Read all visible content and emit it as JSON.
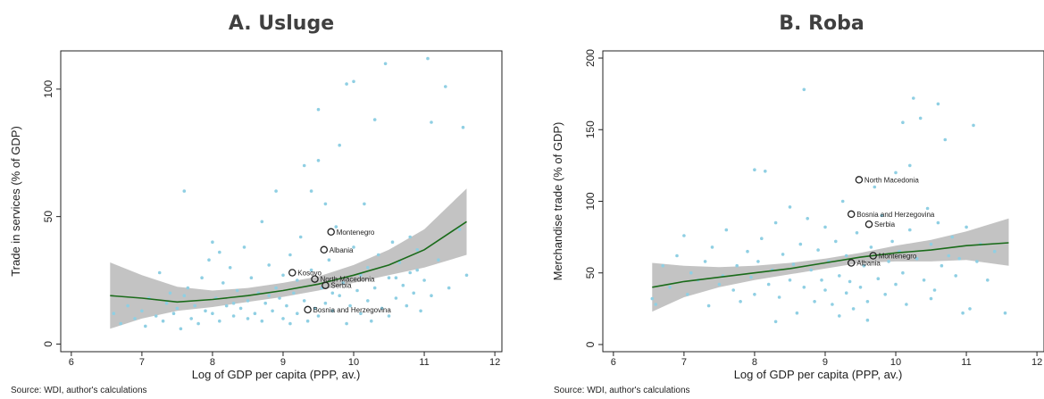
{
  "overline_text": "",
  "panels": {
    "a": {
      "title": "A. Usluge",
      "source": "Source: WDI, author's calculations"
    },
    "b": {
      "title": "B. Roba",
      "source": "Source: WDI, author's calculations"
    }
  },
  "chart_data": [
    {
      "type": "scatter",
      "title": "A. Usluge",
      "xlabel": "Log of GDP per capita (PPP, av.)",
      "ylabel": "Trade in services (% of GDP)",
      "xlim": [
        5.85,
        12.1
      ],
      "ylim": [
        -3,
        115
      ],
      "xticks": [
        6,
        7,
        8,
        9,
        10,
        11,
        12
      ],
      "yticks": [
        0,
        50,
        100
      ],
      "grid": false,
      "point_color": "#8fcfe3",
      "fit_color": "#1a6b1a",
      "band_color": "#b8b8b8",
      "labeled_points": [
        {
          "label": "Montenegro",
          "x": 9.68,
          "y": 44
        },
        {
          "label": "Albania",
          "x": 9.58,
          "y": 37
        },
        {
          "label": "Kosovo",
          "x": 9.13,
          "y": 28
        },
        {
          "label": "North Macedonia",
          "x": 9.45,
          "y": 25.5
        },
        {
          "label": "Serbia",
          "x": 9.6,
          "y": 23
        },
        {
          "label": "Bosnia and Herzegovina",
          "x": 9.35,
          "y": 13.5
        }
      ],
      "fit": {
        "x": [
          6.55,
          7,
          7.5,
          8,
          8.5,
          9,
          9.5,
          10,
          10.5,
          11,
          11.6
        ],
        "y": [
          19,
          18,
          16.5,
          17.5,
          19,
          21,
          23.5,
          27,
          31,
          37,
          48
        ]
      },
      "band_upper": [
        32,
        27,
        22.5,
        21,
        22,
        24,
        26.5,
        31,
        37,
        45,
        61
      ],
      "band_lower": [
        6,
        10,
        13,
        14.5,
        16.5,
        18.5,
        21,
        24,
        27,
        30,
        35
      ],
      "points": [
        [
          6.6,
          12
        ],
        [
          6.7,
          8
        ],
        [
          6.8,
          15
        ],
        [
          6.9,
          10
        ],
        [
          7.0,
          13
        ],
        [
          7.05,
          7
        ],
        [
          7.1,
          18
        ],
        [
          7.2,
          11
        ],
        [
          7.25,
          28
        ],
        [
          7.3,
          9
        ],
        [
          7.35,
          16
        ],
        [
          7.4,
          20
        ],
        [
          7.45,
          12
        ],
        [
          7.5,
          14
        ],
        [
          7.55,
          6
        ],
        [
          7.6,
          19
        ],
        [
          7.6,
          60
        ],
        [
          7.65,
          22
        ],
        [
          7.7,
          10
        ],
        [
          7.75,
          15
        ],
        [
          7.8,
          8
        ],
        [
          7.85,
          26
        ],
        [
          7.9,
          13
        ],
        [
          7.95,
          33
        ],
        [
          8.0,
          40
        ],
        [
          8.0,
          12
        ],
        [
          8.05,
          18
        ],
        [
          8.1,
          36
        ],
        [
          8.1,
          9
        ],
        [
          8.15,
          24
        ],
        [
          8.2,
          15
        ],
        [
          8.25,
          30
        ],
        [
          8.3,
          11
        ],
        [
          8.35,
          21
        ],
        [
          8.4,
          14
        ],
        [
          8.45,
          38
        ],
        [
          8.5,
          17
        ],
        [
          8.5,
          10
        ],
        [
          8.55,
          26
        ],
        [
          8.6,
          12
        ],
        [
          8.65,
          20
        ],
        [
          8.7,
          48
        ],
        [
          8.7,
          9
        ],
        [
          8.75,
          16
        ],
        [
          8.8,
          31
        ],
        [
          8.85,
          13
        ],
        [
          8.9,
          22
        ],
        [
          8.9,
          60
        ],
        [
          8.95,
          18
        ],
        [
          9.0,
          10
        ],
        [
          9.0,
          27
        ],
        [
          9.05,
          15
        ],
        [
          9.1,
          35
        ],
        [
          9.1,
          8
        ],
        [
          9.15,
          20
        ],
        [
          9.2,
          12
        ],
        [
          9.25,
          42
        ],
        [
          9.3,
          17
        ],
        [
          9.3,
          70
        ],
        [
          9.35,
          9
        ],
        [
          9.4,
          29
        ],
        [
          9.4,
          60
        ],
        [
          9.45,
          14
        ],
        [
          9.5,
          72
        ],
        [
          9.5,
          92
        ],
        [
          9.5,
          11
        ],
        [
          9.55,
          22
        ],
        [
          9.6,
          55
        ],
        [
          9.6,
          16
        ],
        [
          9.65,
          33
        ],
        [
          9.7,
          13
        ],
        [
          9.75,
          46
        ],
        [
          9.8,
          19
        ],
        [
          9.8,
          78
        ],
        [
          9.85,
          24
        ],
        [
          9.9,
          8
        ],
        [
          9.9,
          102
        ],
        [
          9.95,
          15
        ],
        [
          10.0,
          38
        ],
        [
          10.0,
          103
        ],
        [
          10.05,
          21
        ],
        [
          10.1,
          12
        ],
        [
          10.1,
          27
        ],
        [
          10.15,
          55
        ],
        [
          10.2,
          17
        ],
        [
          10.2,
          30
        ],
        [
          10.25,
          9
        ],
        [
          10.3,
          88
        ],
        [
          10.3,
          22
        ],
        [
          10.35,
          35
        ],
        [
          10.4,
          14
        ],
        [
          10.45,
          110
        ],
        [
          10.5,
          26
        ],
        [
          10.5,
          11
        ],
        [
          10.55,
          40
        ],
        [
          10.6,
          18
        ],
        [
          10.65,
          32
        ],
        [
          10.7,
          23
        ],
        [
          10.75,
          15
        ],
        [
          10.8,
          42
        ],
        [
          10.8,
          28
        ],
        [
          10.85,
          20
        ],
        [
          10.9,
          37
        ],
        [
          10.95,
          13
        ],
        [
          11.0,
          25
        ],
        [
          11.05,
          112
        ],
        [
          11.1,
          87
        ],
        [
          11.1,
          19
        ],
        [
          11.2,
          33
        ],
        [
          11.3,
          101
        ],
        [
          11.35,
          22
        ],
        [
          11.5,
          45
        ],
        [
          11.55,
          85
        ],
        [
          11.6,
          27
        ],
        [
          9.2,
          25
        ],
        [
          8.8,
          19
        ],
        [
          10.6,
          26
        ],
        [
          10.9,
          29
        ],
        [
          9.7,
          20
        ],
        [
          8.3,
          16
        ]
      ]
    },
    {
      "type": "scatter",
      "title": "B. Roba",
      "xlabel": "Log of GDP per capita (PPP, av.)",
      "ylabel": "Merchandise trade (% of GDP)",
      "xlim": [
        5.85,
        12.1
      ],
      "ylim": [
        -5,
        205
      ],
      "xticks": [
        6,
        7,
        8,
        9,
        10,
        11,
        12
      ],
      "yticks": [
        0,
        50,
        100,
        150,
        200
      ],
      "grid": false,
      "point_color": "#8fcfe3",
      "fit_color": "#1a6b1a",
      "band_color": "#b8b8b8",
      "labeled_points": [
        {
          "label": "North Macedonia",
          "x": 9.48,
          "y": 115
        },
        {
          "label": "Bosnia and Herzegovina",
          "x": 9.37,
          "y": 91
        },
        {
          "label": "Serbia",
          "x": 9.62,
          "y": 84
        },
        {
          "label": "Montenegro",
          "x": 9.68,
          "y": 62
        },
        {
          "label": "Albania",
          "x": 9.37,
          "y": 57
        }
      ],
      "fit": {
        "x": [
          6.55,
          7,
          7.5,
          8,
          8.5,
          9,
          9.5,
          10,
          10.5,
          11,
          11.6
        ],
        "y": [
          40,
          44,
          47,
          50,
          53,
          57,
          61,
          64,
          66,
          69,
          71
        ]
      },
      "band_upper": [
        57,
        55,
        54,
        55,
        57,
        60,
        64,
        69,
        73,
        79,
        88
      ],
      "band_lower": [
        23,
        33,
        40,
        45,
        49,
        53,
        57,
        58,
        58,
        59,
        55
      ],
      "points": [
        [
          6.55,
          32
        ],
        [
          6.6,
          28
        ],
        [
          6.7,
          55
        ],
        [
          6.8,
          40
        ],
        [
          6.9,
          62
        ],
        [
          7.0,
          76
        ],
        [
          7.05,
          35
        ],
        [
          7.1,
          50
        ],
        [
          7.2,
          45
        ],
        [
          7.3,
          58
        ],
        [
          7.35,
          27
        ],
        [
          7.4,
          68
        ],
        [
          7.5,
          42
        ],
        [
          7.55,
          48
        ],
        [
          7.6,
          80
        ],
        [
          7.7,
          38
        ],
        [
          7.75,
          55
        ],
        [
          7.8,
          30
        ],
        [
          7.9,
          65
        ],
        [
          7.95,
          47
        ],
        [
          8.0,
          122
        ],
        [
          8.0,
          35
        ],
        [
          8.05,
          58
        ],
        [
          8.1,
          74
        ],
        [
          8.15,
          121
        ],
        [
          8.2,
          42
        ],
        [
          8.25,
          52
        ],
        [
          8.3,
          85
        ],
        [
          8.35,
          33
        ],
        [
          8.4,
          63
        ],
        [
          8.5,
          96
        ],
        [
          8.5,
          45
        ],
        [
          8.55,
          56
        ],
        [
          8.6,
          22
        ],
        [
          8.65,
          70
        ],
        [
          8.7,
          178
        ],
        [
          8.7,
          40
        ],
        [
          8.75,
          88
        ],
        [
          8.8,
          52
        ],
        [
          8.85,
          30
        ],
        [
          8.9,
          66
        ],
        [
          8.95,
          45
        ],
        [
          9.0,
          82
        ],
        [
          9.0,
          38
        ],
        [
          9.05,
          58
        ],
        [
          9.1,
          28
        ],
        [
          9.15,
          72
        ],
        [
          9.2,
          48
        ],
        [
          9.25,
          100
        ],
        [
          9.3,
          36
        ],
        [
          9.3,
          62
        ],
        [
          9.35,
          44
        ],
        [
          9.4,
          25
        ],
        [
          9.45,
          78
        ],
        [
          9.5,
          40
        ],
        [
          9.55,
          55
        ],
        [
          9.6,
          30
        ],
        [
          9.65,
          68
        ],
        [
          9.7,
          110
        ],
        [
          9.75,
          46
        ],
        [
          9.8,
          90
        ],
        [
          9.85,
          35
        ],
        [
          9.9,
          58
        ],
        [
          9.95,
          72
        ],
        [
          10.0,
          42
        ],
        [
          10.0,
          120
        ],
        [
          10.05,
          65
        ],
        [
          10.1,
          155
        ],
        [
          10.1,
          50
        ],
        [
          10.15,
          28
        ],
        [
          10.2,
          125
        ],
        [
          10.2,
          80
        ],
        [
          10.25,
          172
        ],
        [
          10.3,
          60
        ],
        [
          10.35,
          158
        ],
        [
          10.4,
          45
        ],
        [
          10.45,
          95
        ],
        [
          10.5,
          70
        ],
        [
          10.55,
          38
        ],
        [
          10.6,
          168
        ],
        [
          10.6,
          85
        ],
        [
          10.65,
          55
        ],
        [
          10.7,
          143
        ],
        [
          10.75,
          62
        ],
        [
          10.8,
          75
        ],
        [
          10.85,
          48
        ],
        [
          10.9,
          60
        ],
        [
          10.95,
          22
        ],
        [
          11.0,
          82
        ],
        [
          11.05,
          25
        ],
        [
          11.1,
          153
        ],
        [
          11.15,
          58
        ],
        [
          11.2,
          70
        ],
        [
          11.3,
          45
        ],
        [
          11.4,
          65
        ],
        [
          11.55,
          22
        ],
        [
          9.2,
          20
        ],
        [
          8.3,
          16
        ],
        [
          9.6,
          17
        ],
        [
          10.5,
          32
        ]
      ]
    }
  ]
}
